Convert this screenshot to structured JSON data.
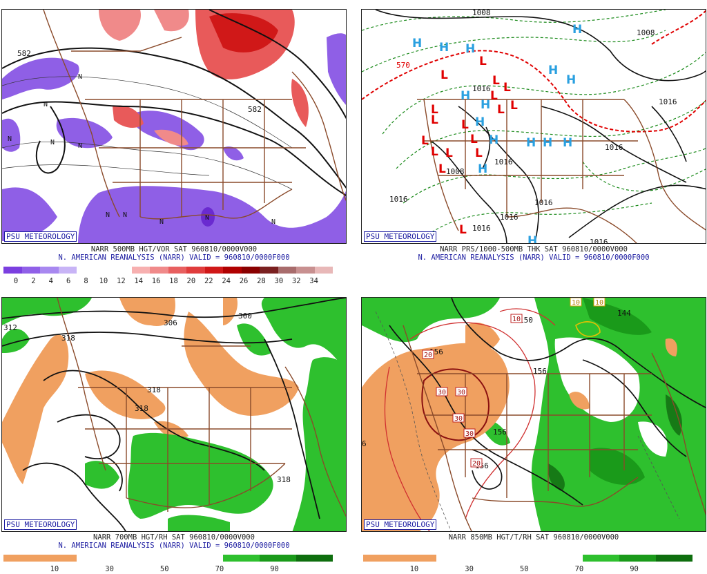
{
  "badge": "PSU METEOROLOGY",
  "panels": {
    "tl": {
      "caption1": "NARR 500MB HGT/VOR SAT 960810/0000V000",
      "caption2": "N. AMERICAN REANALYSIS (NARR) VALID = 960810/0000F000",
      "colorbar_colors": [
        "#7b3fe0",
        "#9060e8",
        "#a888f0",
        "#c8b4f6",
        "#ffffff",
        "#ffffff",
        "#ffffff",
        "#f7b0b0",
        "#f08a8a",
        "#e86060",
        "#e03c3c",
        "#d01818",
        "#b00000",
        "#8a0000",
        "#7a2020",
        "#a86c6c",
        "#c89090",
        "#e8b8b8"
      ],
      "ticks": [
        "0",
        "2",
        "4",
        "6",
        "8",
        "10",
        "12",
        "14",
        "16",
        "18",
        "20",
        "22",
        "24",
        "26",
        "28",
        "30",
        "32",
        "34"
      ],
      "map_labels": [
        "582",
        "582",
        "N",
        "N",
        "N",
        "N",
        "N",
        "N",
        "N",
        "N"
      ]
    },
    "tr": {
      "caption1": "NARR PRS/1000-500MB THK SAT 960810/0000V000",
      "caption2": "N. AMERICAN REANALYSIS (NARR) VALID = 960810/0000F000",
      "map_labels": [
        "1008",
        "1008",
        "570",
        "1016",
        "1008",
        "1016",
        "1016",
        "1016",
        "1016",
        "1016",
        "1016",
        "1016",
        "1016"
      ],
      "H_count": 16,
      "L_count": 17
    },
    "bl": {
      "caption1": "NARR 700MB HGT/RH SAT 960810/0000V000",
      "caption2": "N. AMERICAN REANALYSIS (NARR) VALID = 960810/0000F000",
      "colorbar_colors": [
        "#f0a060",
        "#f0a060",
        "#ffffff",
        "#ffffff",
        "#ffffff",
        "#ffffff",
        "#2ec02e",
        "#1a9a1a",
        "#0e6e0e"
      ],
      "ticks": [
        "10",
        "30",
        "50",
        "70",
        "90"
      ],
      "map_labels": [
        "312",
        "318",
        "306",
        "300",
        "318",
        "318",
        "318"
      ]
    },
    "br": {
      "caption1": "NARR 850MB HGT/T/RH SAT 960810/0000V000",
      "caption2": "",
      "colorbar_colors": [
        "#f0a060",
        "#f0a060",
        "#ffffff",
        "#ffffff",
        "#ffffff",
        "#ffffff",
        "#2ec02e",
        "#1a9a1a",
        "#0e6e0e"
      ],
      "ticks": [
        "10",
        "30",
        "50",
        "70",
        "90"
      ],
      "map_labels": [
        "150",
        "144",
        "156",
        "156",
        "156",
        "156",
        "6"
      ],
      "box_labels": [
        "10",
        "10",
        "10",
        "20",
        "30",
        "30",
        "30",
        "30",
        "20"
      ]
    }
  },
  "colors": {
    "border_brown": "#8a4a2a",
    "contour": "#111111",
    "rh_orange": "#f0a060",
    "rh_green": "#2ec02e",
    "rh_dkgreen": "#167a16",
    "vor_purple": "#8f5fe6",
    "vor_red": "#e85a5a",
    "press_green": "#1a8a1a",
    "press_red": "#e00000",
    "hi_blue": "#2aa0e0",
    "badge_blue": "#1a1aa0"
  }
}
